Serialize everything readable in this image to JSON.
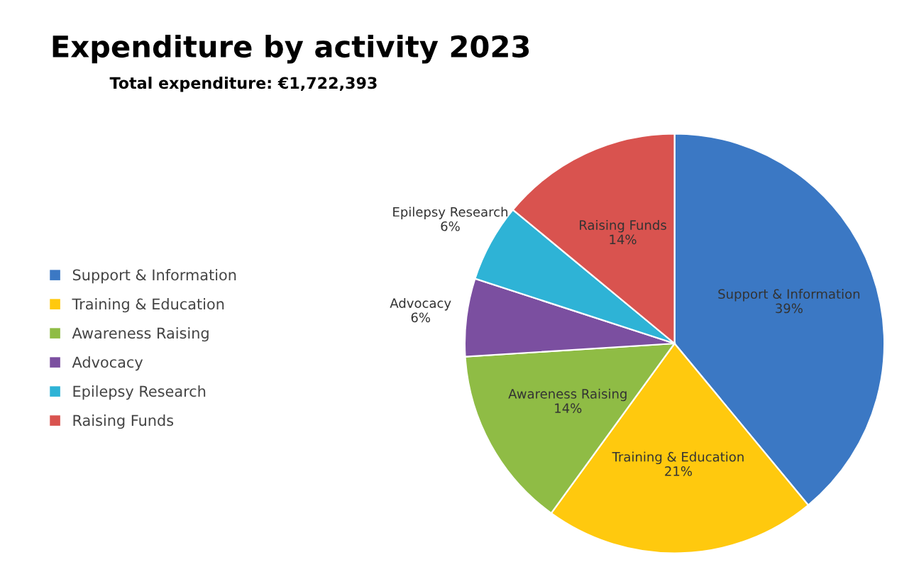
{
  "chart_data": {
    "type": "pie",
    "title": "Expenditure by activity 2023",
    "subtitle": "Total expenditure: €1,722,393",
    "categories": [
      "Support & Information",
      "Training & Education",
      "Awareness Raising",
      "Advocacy",
      "Epilepsy Research",
      "Raising Funds"
    ],
    "values": [
      39,
      21,
      14,
      6,
      6,
      14
    ],
    "value_labels": [
      "39%",
      "21%",
      "14%",
      "6%",
      "6%",
      "14%"
    ],
    "colors": [
      "#3b78c4",
      "#ffc90e",
      "#8fbc45",
      "#7b4fa0",
      "#2eb3d6",
      "#d9534f"
    ],
    "legend": "left"
  }
}
